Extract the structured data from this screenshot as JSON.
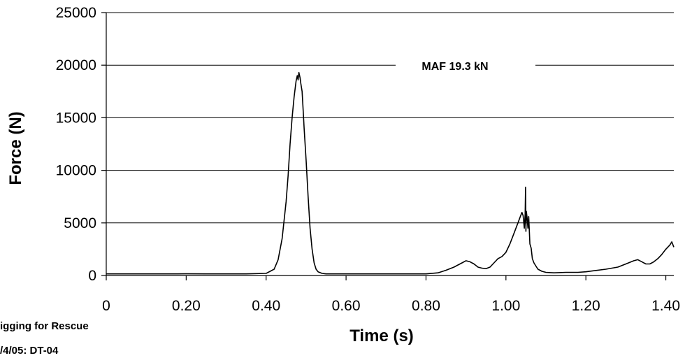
{
  "chart_data": {
    "type": "line",
    "title": "",
    "xlabel": "Time (s)",
    "ylabel": "Force (N)",
    "xlim": [
      0,
      1.42
    ],
    "ylim": [
      0,
      25000
    ],
    "x_ticks": [
      0,
      0.2,
      0.4,
      0.6,
      0.8,
      1.0,
      1.2,
      1.4
    ],
    "x_tick_labels": [
      "0",
      "0.20",
      "0.40",
      "0.60",
      "0.80",
      "1.00",
      "1.20",
      "1.40"
    ],
    "y_ticks": [
      0,
      5000,
      10000,
      15000,
      20000,
      25000
    ],
    "y_tick_labels": [
      "0",
      "5000",
      "10000",
      "15000",
      "20000",
      "25000"
    ],
    "grid": "horizontal",
    "legend": "none",
    "line_color": "#000000",
    "annotation": {
      "text": "MAF 19.3 kN",
      "y": 20000
    },
    "credit_lines": [
      "igging for Rescue",
      "/4/05: DT-04"
    ],
    "series": [
      {
        "x": [
          0,
          0.05,
          0.1,
          0.15,
          0.2,
          0.25,
          0.3,
          0.35,
          0.4,
          0.42,
          0.43,
          0.44,
          0.45,
          0.455,
          0.46,
          0.465,
          0.47,
          0.475,
          0.478,
          0.48,
          0.482,
          0.485,
          0.487,
          0.49,
          0.493,
          0.495,
          0.5,
          0.505,
          0.51,
          0.515,
          0.52,
          0.525,
          0.53,
          0.54,
          0.55,
          0.56,
          0.6,
          0.65,
          0.7,
          0.75,
          0.8,
          0.83,
          0.85,
          0.87,
          0.89,
          0.9,
          0.91,
          0.92,
          0.93,
          0.94,
          0.95,
          0.96,
          0.97,
          0.98,
          0.99,
          1.0,
          1.01,
          1.02,
          1.03,
          1.035,
          1.04,
          1.043,
          1.046,
          1.048,
          1.049,
          1.05,
          1.051,
          1.053,
          1.055,
          1.057,
          1.06,
          1.063,
          1.066,
          1.07,
          1.075,
          1.08,
          1.09,
          1.1,
          1.12,
          1.15,
          1.18,
          1.2,
          1.22,
          1.25,
          1.28,
          1.3,
          1.32,
          1.33,
          1.34,
          1.35,
          1.36,
          1.37,
          1.38,
          1.39,
          1.4,
          1.41,
          1.415,
          1.42
        ],
        "y": [
          150,
          150,
          150,
          150,
          160,
          150,
          150,
          150,
          200,
          600,
          1500,
          3500,
          7000,
          9500,
          12500,
          15000,
          17000,
          18500,
          19000,
          18600,
          19300,
          18800,
          18200,
          17500,
          15500,
          14000,
          11000,
          7500,
          4500,
          2500,
          1200,
          600,
          350,
          200,
          150,
          150,
          150,
          150,
          150,
          150,
          150,
          250,
          500,
          800,
          1200,
          1400,
          1300,
          1100,
          800,
          700,
          650,
          800,
          1200,
          1600,
          1800,
          2200,
          3000,
          4000,
          5000,
          5500,
          6000,
          5700,
          4500,
          5800,
          8400,
          4200,
          6100,
          5500,
          4500,
          5600,
          3000,
          2600,
          1600,
          1200,
          900,
          600,
          400,
          300,
          250,
          300,
          300,
          350,
          450,
          600,
          800,
          1100,
          1400,
          1500,
          1300,
          1100,
          1100,
          1300,
          1600,
          2000,
          2500,
          2900,
          3200,
          2700
        ]
      }
    ]
  }
}
